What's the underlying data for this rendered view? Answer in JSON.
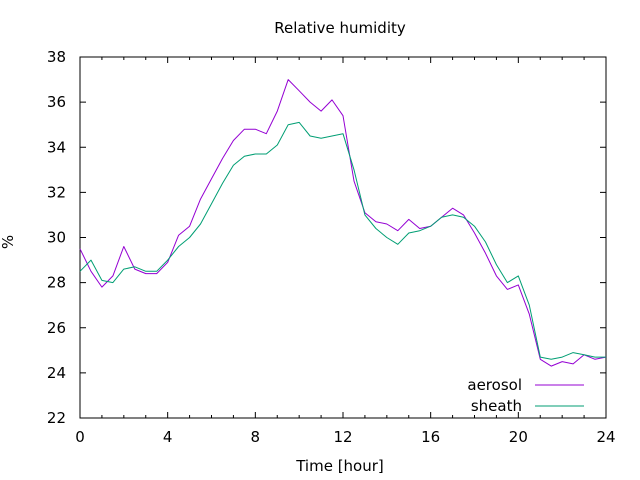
{
  "chart_data": {
    "type": "line",
    "title": "Relative humidity",
    "xlabel": "Time [hour]",
    "ylabel": "%",
    "xlim": [
      0,
      24
    ],
    "ylim": [
      22,
      38
    ],
    "xticks": [
      "0",
      "4",
      "8",
      "12",
      "16",
      "20",
      "24"
    ],
    "yticks": [
      "22",
      "24",
      "26",
      "28",
      "30",
      "32",
      "34",
      "36",
      "38"
    ],
    "grid": false,
    "legend_position": "bottom-right",
    "series": [
      {
        "name": "aerosol",
        "color": "#9400d3",
        "x": [
          0,
          0.5,
          1,
          1.5,
          2,
          2.5,
          3,
          3.5,
          4,
          4.5,
          5,
          5.5,
          6,
          6.5,
          7,
          7.5,
          8,
          8.5,
          9,
          9.5,
          10,
          10.5,
          11,
          11.5,
          12,
          12.5,
          13,
          13.5,
          14,
          14.5,
          15,
          15.5,
          16,
          16.5,
          17,
          17.5,
          18,
          18.5,
          19,
          19.5,
          20,
          20.5,
          21,
          21.5,
          22,
          22.5,
          23,
          23.5,
          24
        ],
        "y": [
          29.5,
          28.5,
          27.8,
          28.3,
          29.6,
          28.6,
          28.4,
          28.4,
          28.9,
          30.1,
          30.5,
          31.7,
          32.6,
          33.5,
          34.3,
          34.8,
          34.8,
          34.6,
          35.6,
          37.0,
          36.5,
          36.0,
          35.6,
          36.1,
          35.4,
          32.5,
          31.1,
          30.7,
          30.6,
          30.3,
          30.8,
          30.4,
          30.5,
          30.9,
          31.3,
          31.0,
          30.2,
          29.3,
          28.3,
          27.7,
          27.9,
          26.6,
          24.6,
          24.3,
          24.5,
          24.4,
          24.8,
          24.6,
          24.7
        ]
      },
      {
        "name": "sheath",
        "color": "#009e73",
        "x": [
          0,
          0.5,
          1,
          1.5,
          2,
          2.5,
          3,
          3.5,
          4,
          4.5,
          5,
          5.5,
          6,
          6.5,
          7,
          7.5,
          8,
          8.5,
          9,
          9.5,
          10,
          10.5,
          11,
          11.5,
          12,
          12.5,
          13,
          13.5,
          14,
          14.5,
          15,
          15.5,
          16,
          16.5,
          17,
          17.5,
          18,
          18.5,
          19,
          19.5,
          20,
          20.5,
          21,
          21.5,
          22,
          22.5,
          23,
          23.5,
          24
        ],
        "y": [
          28.5,
          29.0,
          28.1,
          28.0,
          28.6,
          28.7,
          28.5,
          28.5,
          29.0,
          29.6,
          30.0,
          30.6,
          31.5,
          32.4,
          33.2,
          33.6,
          33.7,
          33.7,
          34.1,
          35.0,
          35.1,
          34.5,
          34.4,
          34.5,
          34.6,
          33.0,
          31.0,
          30.4,
          30.0,
          29.7,
          30.2,
          30.3,
          30.5,
          30.9,
          31.0,
          30.9,
          30.5,
          29.8,
          28.8,
          28.0,
          28.3,
          27.0,
          24.7,
          24.6,
          24.7,
          24.9,
          24.8,
          24.7,
          24.7
        ]
      }
    ]
  }
}
